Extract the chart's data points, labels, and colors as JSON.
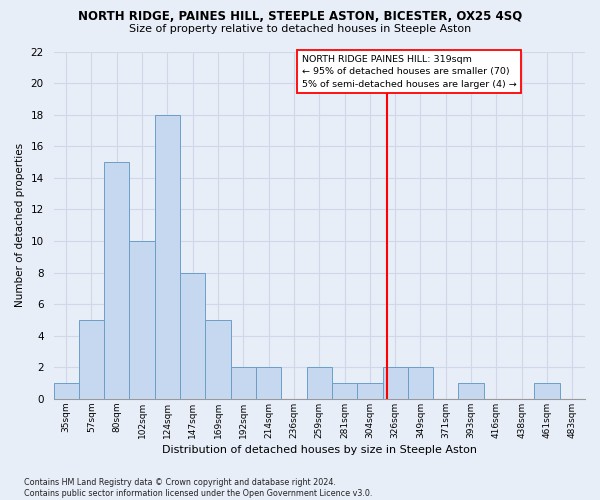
{
  "title1": "NORTH RIDGE, PAINES HILL, STEEPLE ASTON, BICESTER, OX25 4SQ",
  "title2": "Size of property relative to detached houses in Steeple Aston",
  "xlabel": "Distribution of detached houses by size in Steeple Aston",
  "ylabel": "Number of detached properties",
  "bar_labels": [
    "35sqm",
    "57sqm",
    "80sqm",
    "102sqm",
    "124sqm",
    "147sqm",
    "169sqm",
    "192sqm",
    "214sqm",
    "236sqm",
    "259sqm",
    "281sqm",
    "304sqm",
    "326sqm",
    "349sqm",
    "371sqm",
    "393sqm",
    "416sqm",
    "438sqm",
    "461sqm",
    "483sqm"
  ],
  "bar_values": [
    1,
    5,
    15,
    10,
    18,
    8,
    5,
    2,
    2,
    0,
    2,
    1,
    1,
    2,
    2,
    0,
    1,
    0,
    0,
    1,
    0
  ],
  "bar_color": "#c5d8f0",
  "bar_edge_color": "#6a9fc8",
  "grid_color": "#d0d8e8",
  "vline_color": "red",
  "annotation_text": "NORTH RIDGE PAINES HILL: 319sqm\n← 95% of detached houses are smaller (70)\n5% of semi-detached houses are larger (4) →",
  "ylim": [
    0,
    22
  ],
  "yticks": [
    0,
    2,
    4,
    6,
    8,
    10,
    12,
    14,
    16,
    18,
    20,
    22
  ],
  "footnote": "Contains HM Land Registry data © Crown copyright and database right 2024.\nContains public sector information licensed under the Open Government Licence v3.0.",
  "background_color": "#e8eef8",
  "plot_background": "#e8eef8"
}
